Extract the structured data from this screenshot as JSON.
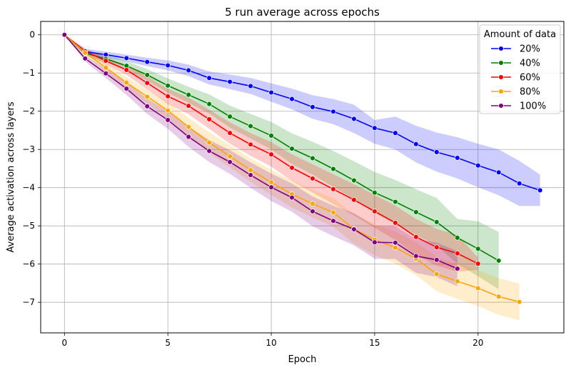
{
  "chart_data": {
    "type": "line",
    "title": "5 run average across epochs",
    "xlabel": "Epoch",
    "ylabel": "Average activation across layers",
    "xlim": [
      -1.15,
      24.15
    ],
    "ylim": [
      -7.8,
      0.35
    ],
    "xticks": [
      0,
      5,
      10,
      15,
      20
    ],
    "yticks": [
      0,
      -1,
      -2,
      -3,
      -4,
      -5,
      -6,
      -7
    ],
    "xtick_labels": [
      "0",
      "5",
      "10",
      "15",
      "20"
    ],
    "ytick_labels": [
      "0",
      "−1",
      "−2",
      "−3",
      "−4",
      "−5",
      "−6",
      "−7"
    ],
    "grid": true,
    "legend": {
      "title": "Amount of data",
      "placement": "top-right"
    },
    "series": [
      {
        "name": "20%",
        "color": "#0000ff",
        "x": [
          0,
          1,
          2,
          3,
          4,
          5,
          6,
          7,
          8,
          9,
          10,
          11,
          12,
          13,
          14,
          15,
          16,
          17,
          18,
          19,
          20,
          21,
          22,
          23
        ],
        "y": [
          0,
          -0.44,
          -0.52,
          -0.61,
          -0.71,
          -0.8,
          -0.93,
          -1.13,
          -1.23,
          -1.34,
          -1.51,
          -1.68,
          -1.89,
          -2.01,
          -2.2,
          -2.44,
          -2.57,
          -2.86,
          -3.07,
          -3.22,
          -3.42,
          -3.6,
          -3.89,
          -4.07
        ],
        "lower": [
          0,
          -0.51,
          -0.6,
          -0.7,
          -0.82,
          -0.93,
          -1.08,
          -1.3,
          -1.42,
          -1.55,
          -1.75,
          -1.95,
          -2.2,
          -2.34,
          -2.57,
          -2.85,
          -3.0,
          -3.34,
          -3.58,
          -3.76,
          -3.99,
          -4.2,
          -4.48,
          -4.48
        ],
        "upper": [
          0,
          -0.37,
          -0.44,
          -0.52,
          -0.6,
          -0.67,
          -0.78,
          -0.96,
          -1.04,
          -1.13,
          -1.27,
          -1.41,
          -1.58,
          -1.68,
          -1.83,
          -2.23,
          -2.14,
          -2.38,
          -2.56,
          -2.68,
          -2.85,
          -3.0,
          -3.3,
          -3.66
        ]
      },
      {
        "name": "40%",
        "color": "#008000",
        "x": [
          0,
          1,
          2,
          3,
          4,
          5,
          6,
          7,
          8,
          9,
          10,
          11,
          12,
          13,
          14,
          15,
          16,
          17,
          18,
          19,
          20,
          21
        ],
        "y": [
          0,
          -0.48,
          -0.63,
          -0.81,
          -1.05,
          -1.33,
          -1.57,
          -1.81,
          -2.14,
          -2.39,
          -2.64,
          -2.98,
          -3.23,
          -3.51,
          -3.81,
          -4.13,
          -4.37,
          -4.64,
          -4.9,
          -5.31,
          -5.6,
          -5.91
        ],
        "lower": [
          0,
          -0.55,
          -0.72,
          -0.93,
          -1.2,
          -1.52,
          -1.78,
          -2.06,
          -2.43,
          -2.71,
          -3.0,
          -3.38,
          -3.66,
          -3.98,
          -4.31,
          -4.67,
          -4.94,
          -5.24,
          -5.53,
          -5.99,
          -6.32,
          -6.66
        ],
        "upper": [
          0,
          -0.41,
          -0.54,
          -0.69,
          -0.9,
          -1.14,
          -1.36,
          -1.56,
          -1.85,
          -2.07,
          -2.28,
          -2.58,
          -2.8,
          -3.04,
          -3.31,
          -3.59,
          -3.8,
          -4.04,
          -4.27,
          -4.82,
          -4.88,
          -5.16
        ]
      },
      {
        "name": "60%",
        "color": "#ff0000",
        "x": [
          0,
          1,
          2,
          3,
          4,
          5,
          6,
          7,
          8,
          9,
          10,
          11,
          12,
          13,
          14,
          15,
          16,
          17,
          18,
          19,
          20
        ],
        "y": [
          0,
          -0.43,
          -0.68,
          -0.92,
          -1.26,
          -1.61,
          -1.86,
          -2.21,
          -2.57,
          -2.87,
          -3.13,
          -3.48,
          -3.76,
          -4.04,
          -4.32,
          -4.62,
          -4.92,
          -5.29,
          -5.56,
          -5.72,
          -5.99
        ],
        "lower": [
          0,
          -0.5,
          -0.78,
          -1.05,
          -1.43,
          -1.81,
          -2.08,
          -2.46,
          -2.85,
          -3.17,
          -3.45,
          -3.83,
          -4.13,
          -4.43,
          -4.73,
          -5.05,
          -5.37,
          -5.76,
          -6.04,
          -6.2,
          -6.15
        ],
        "upper": [
          0,
          -0.36,
          -0.58,
          -0.79,
          -1.09,
          -1.41,
          -1.64,
          -1.96,
          -2.29,
          -2.57,
          -2.81,
          -3.13,
          -3.39,
          -3.65,
          -3.91,
          -4.19,
          -4.47,
          -4.82,
          -5.08,
          -5.24,
          -5.83
        ]
      },
      {
        "name": "80%",
        "color": "#ffa500",
        "x": [
          0,
          1,
          2,
          3,
          4,
          5,
          6,
          7,
          8,
          9,
          10,
          11,
          12,
          13,
          14,
          15,
          16,
          17,
          18,
          19,
          20,
          21,
          22
        ],
        "y": [
          0,
          -0.47,
          -0.86,
          -1.25,
          -1.62,
          -1.98,
          -2.41,
          -2.82,
          -3.18,
          -3.54,
          -3.86,
          -4.17,
          -4.42,
          -4.65,
          -5.08,
          -5.36,
          -5.57,
          -5.86,
          -6.26,
          -6.45,
          -6.63,
          -6.85,
          -6.99
        ],
        "lower": [
          0,
          -0.54,
          -0.97,
          -1.4,
          -1.8,
          -2.19,
          -2.65,
          -3.09,
          -3.47,
          -3.85,
          -4.19,
          -4.52,
          -4.78,
          -5.02,
          -5.47,
          -5.77,
          -5.99,
          -6.29,
          -6.71,
          -6.91,
          -7.1,
          -7.33,
          -7.47
        ],
        "upper": [
          0,
          -0.4,
          -0.75,
          -1.1,
          -1.44,
          -1.77,
          -2.17,
          -2.55,
          -2.89,
          -3.23,
          -3.53,
          -3.82,
          -4.06,
          -4.28,
          -4.69,
          -4.95,
          -5.15,
          -5.43,
          -5.81,
          -5.99,
          -6.16,
          -6.37,
          -6.51
        ]
      },
      {
        "name": "100%",
        "color": "#800080",
        "x": [
          0,
          1,
          2,
          3,
          4,
          5,
          6,
          7,
          8,
          9,
          10,
          11,
          12,
          13,
          14,
          15,
          16,
          17,
          18,
          19
        ],
        "y": [
          0,
          -0.62,
          -1.01,
          -1.41,
          -1.87,
          -2.23,
          -2.67,
          -3.04,
          -3.33,
          -3.67,
          -3.99,
          -4.26,
          -4.62,
          -4.87,
          -5.09,
          -5.43,
          -5.44,
          -5.79,
          -5.89,
          -6.12
        ],
        "lower": [
          0,
          -0.7,
          -1.13,
          -1.57,
          -2.07,
          -2.46,
          -2.93,
          -3.33,
          -3.64,
          -4.0,
          -4.35,
          -4.63,
          -5.01,
          -5.27,
          -5.51,
          -5.86,
          -5.87,
          -6.23,
          -6.34,
          -6.58
        ],
        "upper": [
          0,
          -0.54,
          -0.89,
          -1.25,
          -1.67,
          -2.0,
          -2.41,
          -2.75,
          -3.02,
          -3.34,
          -3.63,
          -3.89,
          -4.23,
          -4.47,
          -4.67,
          -5.0,
          -5.01,
          -5.35,
          -5.44,
          -5.66
        ]
      }
    ]
  }
}
